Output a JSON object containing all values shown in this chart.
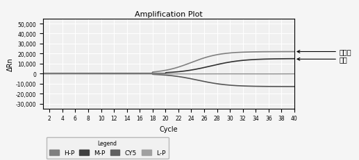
{
  "title": "Amplification Plot",
  "xlabel": "Cycle",
  "ylabel": "ΔRn",
  "xlim": [
    1,
    40
  ],
  "ylim": [
    -35000,
    55000
  ],
  "yticks": [
    -30000,
    -20000,
    -10000,
    0,
    10000,
    20000,
    30000,
    40000,
    50000
  ],
  "xticks": [
    2,
    4,
    6,
    8,
    10,
    12,
    14,
    16,
    18,
    20,
    22,
    24,
    26,
    28,
    30,
    32,
    34,
    36,
    38,
    40
  ],
  "annotation_ma": "马源性",
  "annotation_nb": "内标",
  "legend_items": [
    "H-P",
    "M-P",
    "CY5",
    "L-P"
  ],
  "legend_colors": [
    "#808080",
    "#404040",
    "#606060",
    "#a0a0a0"
  ],
  "background_color": "#f0f0f0",
  "grid_color": "#ffffff",
  "line_colors": {
    "HP": "#808080",
    "MP": "#303030",
    "CY5": "#555555",
    "LP": "#909090"
  }
}
